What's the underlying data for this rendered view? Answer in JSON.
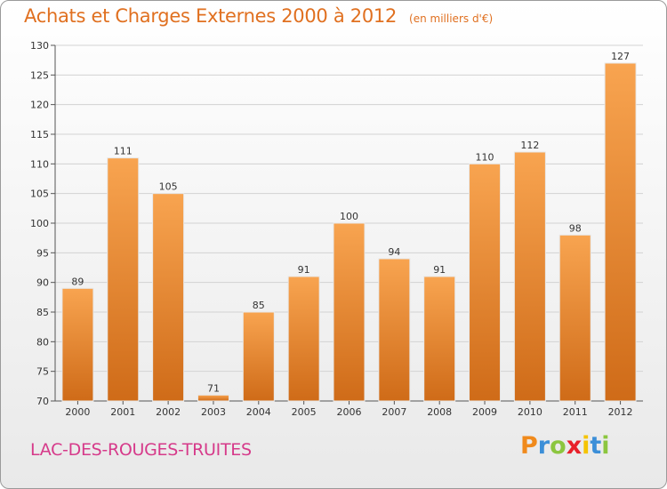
{
  "title": "Achats et Charges Externes 2000 à 2012",
  "unit": "(en milliers d'€)",
  "place": "LAC-DES-ROUGES-TRUITES",
  "logo": {
    "letters": [
      "P",
      "r",
      "o",
      "x",
      "i",
      "t",
      "i"
    ],
    "colors": [
      "#f08a1c",
      "#3c8fd8",
      "#8cc63f",
      "#e8202a",
      "#f5c400",
      "#3c8fd8",
      "#8cc63f"
    ]
  },
  "colors": {
    "title": "#e07020",
    "place": "#d63a8a",
    "bar_light": "#f8a450",
    "bar_dark": "#cf6b18"
  },
  "chart_data": {
    "type": "bar",
    "categories": [
      "2000",
      "2001",
      "2002",
      "2003",
      "2004",
      "2005",
      "2006",
      "2007",
      "2008",
      "2009",
      "2010",
      "2011",
      "2012"
    ],
    "values": [
      89,
      111,
      105,
      71,
      85,
      91,
      100,
      94,
      91,
      110,
      112,
      98,
      127
    ],
    "title": "Achats et Charges Externes 2000 à 2012",
    "ylim": [
      70,
      130
    ],
    "yticks": [
      70,
      75,
      80,
      85,
      90,
      95,
      100,
      105,
      110,
      115,
      120,
      125,
      130
    ],
    "grid": true
  }
}
